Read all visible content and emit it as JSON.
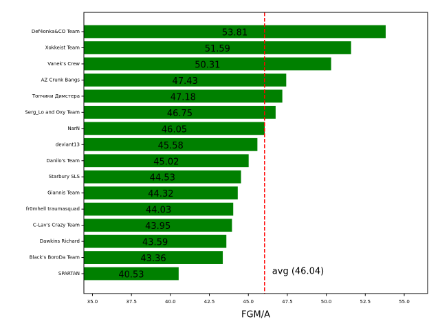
{
  "chart_data": {
    "type": "barh",
    "categories": [
      "Def4onka&CO Team",
      "Xokkeist Team",
      "Vanek's Crew",
      "AZ Crunk Bangs",
      "Топчики Димстера",
      "Serg_Lo and Oxy Team",
      "NarN",
      "deviant13",
      "Danilo's Team",
      "Starbury SLS",
      "Giannis Team",
      "fr0mhell traumasquad",
      "C-Lav's Crazy Team",
      "Dawkins Richard",
      "Black's BoroDa Team",
      "SPARTAN"
    ],
    "values": [
      53.81,
      51.59,
      50.31,
      47.43,
      47.18,
      46.75,
      46.05,
      45.58,
      45.02,
      44.53,
      44.32,
      44.03,
      43.95,
      43.59,
      43.36,
      40.53
    ],
    "color": "#008000",
    "xlabel": "FGM/A",
    "xlim": [
      34.45,
      56.5
    ],
    "xticks": [
      {
        "value": 35,
        "label": "35.0"
      },
      37.5,
      {
        "value": 40,
        "label": "40.0"
      },
      42.5,
      {
        "value": 45,
        "label": "45.0"
      },
      47.5,
      {
        "value": 50,
        "label": "50.0"
      },
      52.5,
      {
        "value": 55,
        "label": "55.0"
      }
    ],
    "avg_value": 46.04,
    "avg_color": "#ff0000",
    "annotation": "avg (46.04)"
  }
}
